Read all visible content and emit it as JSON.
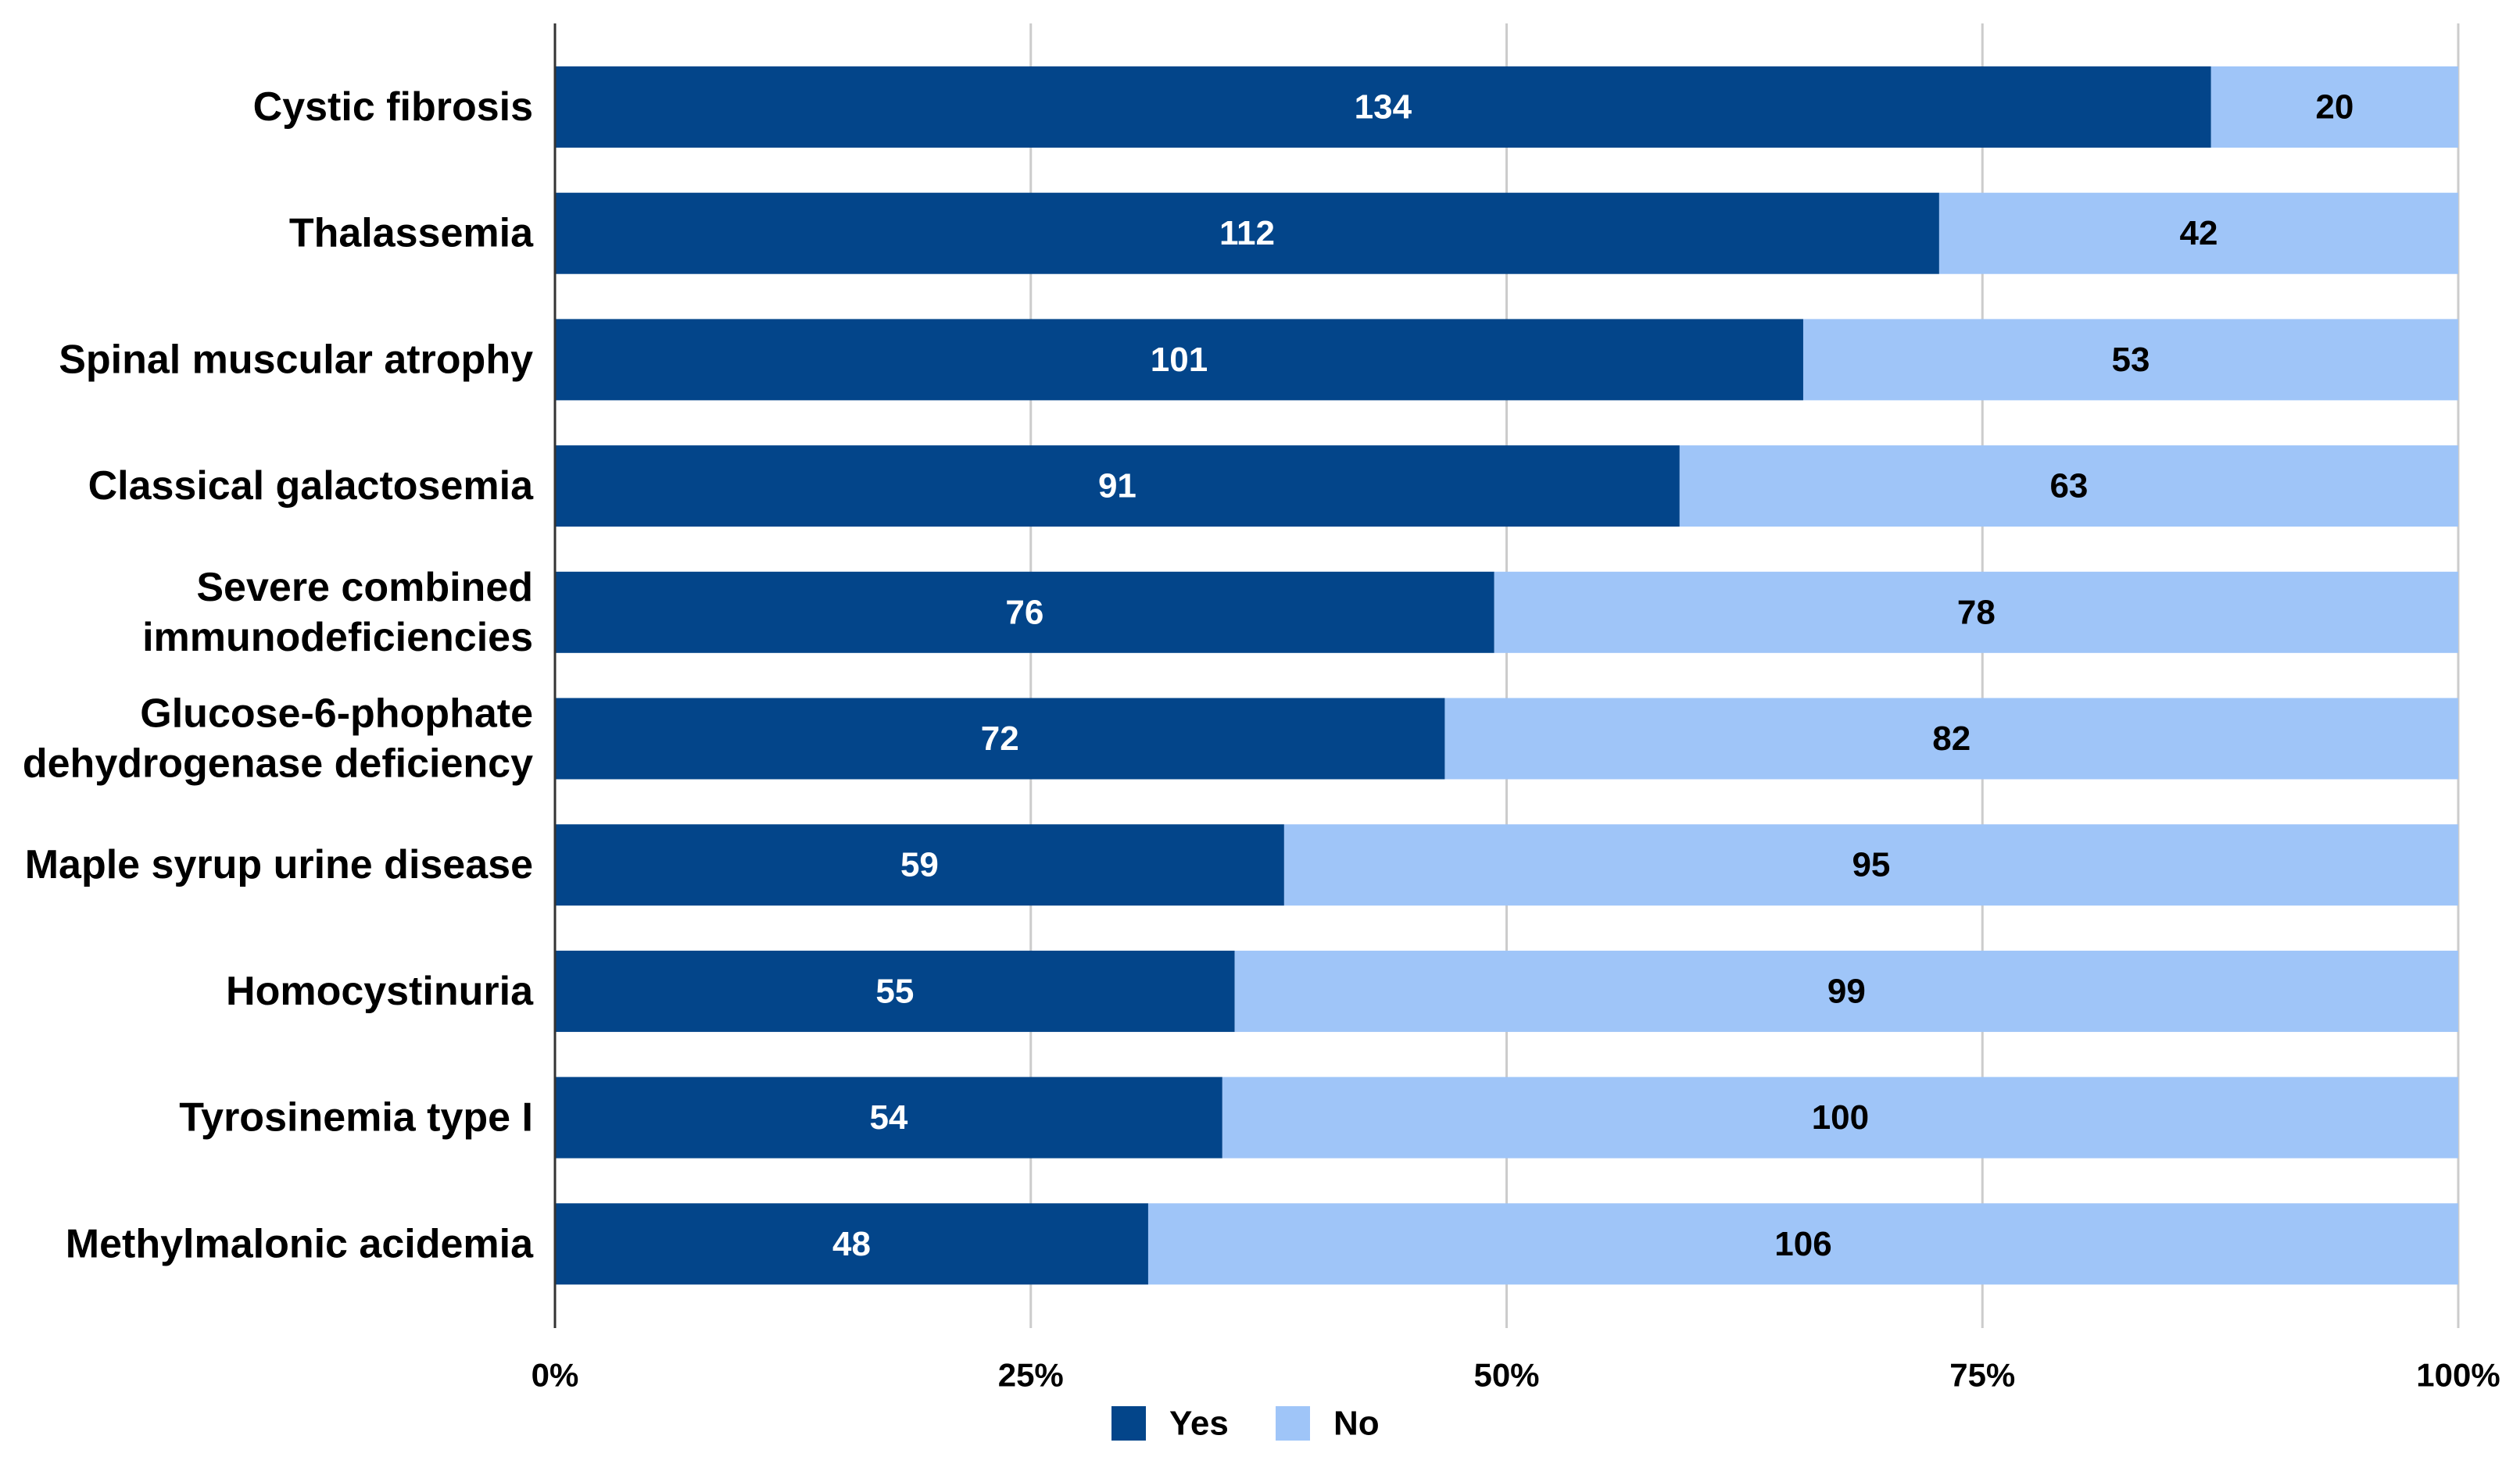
{
  "chart_data": {
    "type": "bar",
    "orientation": "horizontal",
    "stacked": "percent",
    "title": "",
    "xlabel": "",
    "ylabel": "",
    "xlim": [
      0,
      100
    ],
    "grid": true,
    "legend_position": "bottom-center",
    "categories": [
      "Cystic fibrosis",
      "Thalassemia",
      "Spinal muscular atrophy",
      "Classical galactosemia",
      "Severe combined immunodeficiencies",
      "Glucose-6-phophate dehydrogenase deficiency",
      "Maple syrup urine disease",
      "Homocystinuria",
      "Tyrosinemia type I",
      "Methylmalonic acidemia"
    ],
    "category_label_lines": [
      [
        "Cystic fibrosis"
      ],
      [
        "Thalassemia"
      ],
      [
        "Spinal muscular atrophy"
      ],
      [
        "Classical galactosemia"
      ],
      [
        "Severe combined",
        "immunodeficiencies"
      ],
      [
        "Glucose-6-phophate",
        "dehydrogenase deficiency"
      ],
      [
        "Maple syrup urine disease"
      ],
      [
        "Homocystinuria"
      ],
      [
        "Tyrosinemia type I"
      ],
      [
        "Methylmalonic acidemia"
      ]
    ],
    "series": [
      {
        "name": "Yes",
        "color": "#03458a",
        "label_color": "#ffffff",
        "values": [
          134,
          112,
          101,
          91,
          76,
          72,
          59,
          55,
          54,
          48
        ]
      },
      {
        "name": "No",
        "color": "#9fc5f8",
        "label_color": "#000000",
        "values": [
          20,
          42,
          53,
          63,
          78,
          82,
          95,
          99,
          100,
          106
        ]
      }
    ],
    "x_ticks": [
      "0%",
      "25%",
      "50%",
      "75%",
      "100%"
    ],
    "x_tick_values": [
      0,
      25,
      50,
      75,
      100
    ],
    "grid_color": "#cccccc",
    "axis_color": "#333333"
  }
}
